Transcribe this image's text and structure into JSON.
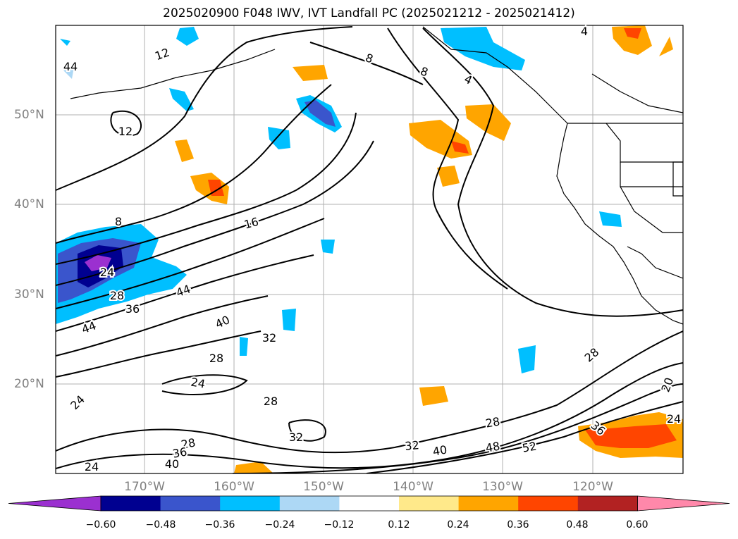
{
  "title": "2025020900 F048 IWV, IVT Landfall PC (2025021212 - 2025021412)",
  "map": {
    "lat_labels": [
      "50°N",
      "40°N",
      "30°N",
      "20°N"
    ],
    "lon_labels": [
      "170°W",
      "160°W",
      "150°W",
      "140°W",
      "130°W",
      "120°W"
    ],
    "contour_labels": [
      "12",
      "8",
      "12",
      "8",
      "4",
      "4",
      "8",
      "16",
      "24",
      "28",
      "36",
      "44",
      "44",
      "40",
      "32",
      "28",
      "24",
      "28",
      "24",
      "24",
      "28",
      "32",
      "32",
      "36",
      "40",
      "28",
      "40",
      "48",
      "52",
      "28",
      "20",
      "24",
      "36",
      "44"
    ]
  },
  "colorbar": {
    "ticks": [
      "−0.60",
      "−0.48",
      "−0.36",
      "−0.24",
      "−0.12",
      "0.12",
      "0.24",
      "0.36",
      "0.48",
      "0.60"
    ],
    "colors": [
      "#9b30d0",
      "#000090",
      "#3a55cc",
      "#00bfff",
      "#add8f5",
      "#ffffff",
      "#ffe98a",
      "#ffa500",
      "#ff4500",
      "#b22222",
      "#ff88aa"
    ]
  }
}
